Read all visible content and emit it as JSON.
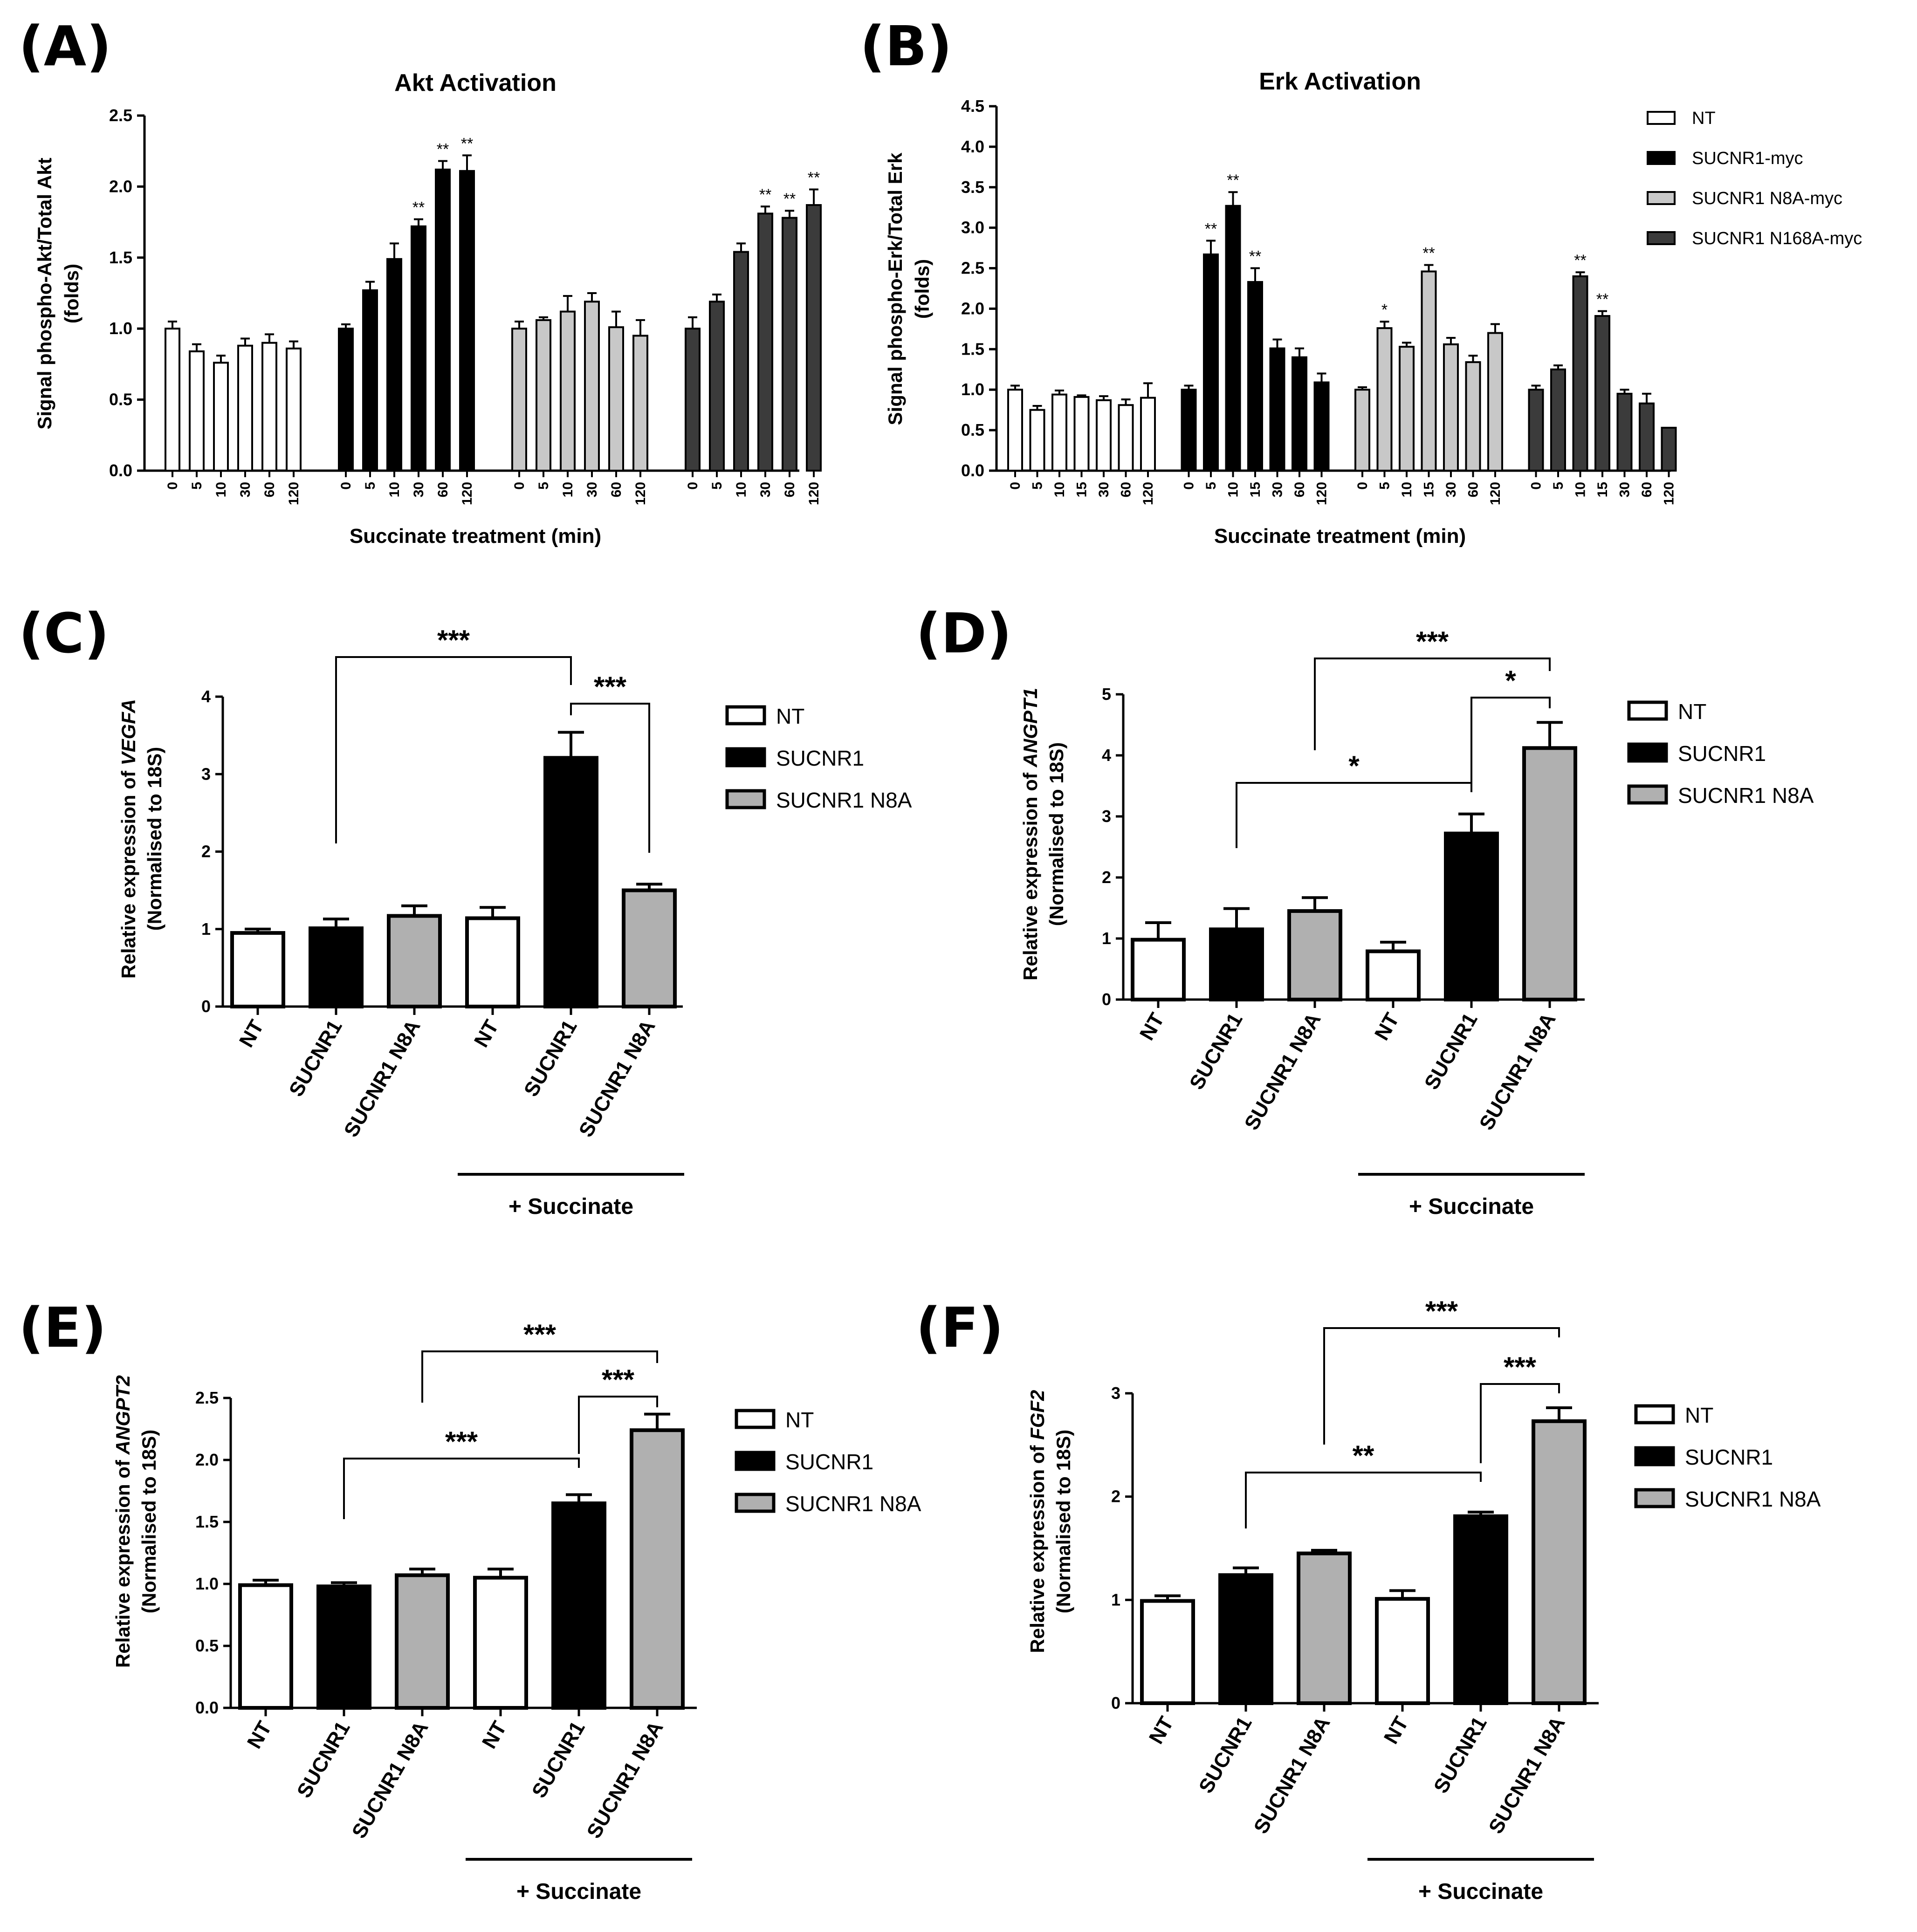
{
  "chart_data": [
    {
      "panel": "(A)",
      "type": "bar",
      "title": "Akt Activation",
      "ylabel": "Signal phospho-Akt/Total Akt\n(folds)",
      "xlabel": "Succinate treatment (min)",
      "ylim": [
        0,
        2.5
      ],
      "yticks": [
        "0.0",
        "0.5",
        "1.0",
        "1.5",
        "2.0",
        "2.5"
      ],
      "groups": [
        {
          "series": "NT",
          "color": "#ffffff",
          "x": [
            "0",
            "5",
            "10",
            "30",
            "60",
            "120"
          ],
          "values": [
            1.0,
            0.84,
            0.76,
            0.88,
            0.9,
            0.86
          ],
          "errors": [
            0.05,
            0.05,
            0.05,
            0.05,
            0.06,
            0.05
          ],
          "sig": [
            "",
            "",
            "",
            "",
            "",
            ""
          ]
        },
        {
          "series": "SUCNR1-myc",
          "color": "#000000",
          "x": [
            "0",
            "5",
            "10",
            "30",
            "60",
            "120"
          ],
          "values": [
            1.0,
            1.27,
            1.49,
            1.72,
            2.12,
            2.11
          ],
          "errors": [
            0.03,
            0.06,
            0.11,
            0.05,
            0.06,
            0.11
          ],
          "sig": [
            "",
            "",
            "",
            "**",
            "**",
            "**"
          ]
        },
        {
          "series": "SUCNR1 N8A-myc",
          "color": "#c8c8c8",
          "x": [
            "0",
            "5",
            "10",
            "30",
            "60",
            "120"
          ],
          "values": [
            1.0,
            1.06,
            1.12,
            1.19,
            1.01,
            0.95
          ],
          "errors": [
            0.05,
            0.02,
            0.11,
            0.06,
            0.11,
            0.11
          ],
          "sig": [
            "",
            "",
            "",
            "",
            "",
            ""
          ]
        },
        {
          "series": "SUCNR1 N168A-myc",
          "color": "#3b3b3b",
          "x": [
            "0",
            "5",
            "10",
            "30",
            "60",
            "120"
          ],
          "values": [
            1.0,
            1.19,
            1.54,
            1.81,
            1.78,
            1.87
          ],
          "errors": [
            0.08,
            0.05,
            0.06,
            0.05,
            0.05,
            0.11
          ],
          "sig": [
            "",
            "",
            "",
            "**",
            "**",
            "**"
          ]
        }
      ]
    },
    {
      "panel": "(B)",
      "type": "bar",
      "title": "Erk Activation",
      "ylabel": "Signal phospho-Erk/Total Erk\n(folds)",
      "xlabel": "Succinate treatment (min)",
      "ylim": [
        0,
        4.5
      ],
      "yticks": [
        "0.0",
        "0.5",
        "1.0",
        "1.5",
        "2.0",
        "2.5",
        "3.0",
        "3.5",
        "4.0",
        "4.5"
      ],
      "legend": [
        "NT",
        "SUCNR1-myc",
        "SUCNR1 N8A-myc",
        "SUCNR1 N168A-myc"
      ],
      "groups": [
        {
          "series": "NT",
          "color": "#ffffff",
          "x": [
            "0",
            "5",
            "10",
            "15",
            "30",
            "60",
            "120"
          ],
          "values": [
            1.0,
            0.75,
            0.94,
            0.91,
            0.87,
            0.81,
            0.9
          ],
          "errors": [
            0.05,
            0.05,
            0.05,
            0.02,
            0.05,
            0.07,
            0.18
          ],
          "sig": [
            "",
            "",
            "",
            "",
            "",
            "",
            ""
          ]
        },
        {
          "series": "SUCNR1-myc",
          "color": "#000000",
          "x": [
            "0",
            "5",
            "10",
            "15",
            "30",
            "60",
            "120"
          ],
          "values": [
            1.0,
            2.67,
            3.27,
            2.33,
            1.51,
            1.4,
            1.09
          ],
          "errors": [
            0.05,
            0.17,
            0.17,
            0.17,
            0.11,
            0.11,
            0.11
          ],
          "sig": [
            "",
            "**",
            "**",
            "**",
            "",
            "",
            ""
          ]
        },
        {
          "series": "SUCNR1 N8A-myc",
          "color": "#c8c8c8",
          "x": [
            "0",
            "5",
            "10",
            "15",
            "30",
            "60",
            "120"
          ],
          "values": [
            1.0,
            1.76,
            1.53,
            2.46,
            1.56,
            1.34,
            1.7
          ],
          "errors": [
            0.03,
            0.08,
            0.05,
            0.08,
            0.08,
            0.08,
            0.11
          ],
          "sig": [
            "",
            "*",
            "",
            "**",
            "",
            "",
            ""
          ]
        },
        {
          "series": "SUCNR1 N168A-myc",
          "color": "#3b3b3b",
          "x": [
            "0",
            "5",
            "10",
            "15",
            "30",
            "60",
            "120"
          ],
          "values": [
            1.0,
            1.25,
            2.4,
            1.91,
            0.95,
            0.83,
            0.53
          ],
          "errors": [
            0.05,
            0.05,
            0.05,
            0.06,
            0.05,
            0.12,
            0
          ],
          "sig": [
            "",
            "",
            "**",
            "**",
            "",
            "",
            ""
          ]
        }
      ]
    },
    {
      "panel": "(C)",
      "type": "bar",
      "ylabel": "Relative expression of VEGFA\n(Normalised to 18S)",
      "ylim": [
        0,
        4
      ],
      "yticks": [
        "0",
        "1",
        "2",
        "3",
        "4"
      ],
      "categories": [
        "NT",
        "SUCNR1",
        "SUCNR1 N8A",
        "NT",
        "SUCNR1",
        "SUCNR1 N8A"
      ],
      "values": [
        0.95,
        1.01,
        1.17,
        1.14,
        3.21,
        1.5
      ],
      "errors": [
        0.05,
        0.12,
        0.13,
        0.14,
        0.33,
        0.08
      ],
      "group_label": "+ Succinate",
      "brackets": [
        "***",
        "***"
      ]
    },
    {
      "panel": "(D)",
      "type": "bar",
      "ylabel": "Relative expression of ANGPT1\n(Normalised to 18S)",
      "ylim": [
        0,
        5
      ],
      "yticks": [
        "0",
        "1",
        "2",
        "3",
        "4",
        "5"
      ],
      "categories": [
        "NT",
        "SUCNR1",
        "SUCNR1 N8A",
        "NT",
        "SUCNR1",
        "SUCNR1 N8A"
      ],
      "values": [
        0.98,
        1.15,
        1.45,
        0.79,
        2.72,
        4.12
      ],
      "errors": [
        0.28,
        0.34,
        0.22,
        0.15,
        0.32,
        0.42
      ],
      "group_label": "+ Succinate",
      "brackets": [
        "***",
        "*",
        "*"
      ]
    },
    {
      "panel": "(E)",
      "type": "bar",
      "ylabel": "Relative expression of ANGPT2\n(Normalised to 18S)",
      "ylim": [
        0,
        2.5
      ],
      "yticks": [
        "0.0",
        "0.5",
        "1.0",
        "1.5",
        "2.0",
        "2.5"
      ],
      "categories": [
        "NT",
        "SUCNR1",
        "SUCNR1 N8A",
        "NT",
        "SUCNR1",
        "SUCNR1 N8A"
      ],
      "values": [
        0.99,
        0.98,
        1.07,
        1.05,
        1.65,
        2.24
      ],
      "errors": [
        0.04,
        0.03,
        0.05,
        0.07,
        0.07,
        0.13
      ],
      "group_label": "+ Succinate",
      "brackets": [
        "***",
        "***",
        "***"
      ]
    },
    {
      "panel": "(F)",
      "type": "bar",
      "ylabel": "Relative expression of FGF2\n(Normalised to 18S)",
      "ylim": [
        0,
        3
      ],
      "yticks": [
        "0",
        "1",
        "2",
        "3"
      ],
      "categories": [
        "NT",
        "SUCNR1",
        "SUCNR1 N8A",
        "NT",
        "SUCNR1",
        "SUCNR1 N8A"
      ],
      "values": [
        0.99,
        1.24,
        1.45,
        1.01,
        1.81,
        2.73
      ],
      "errors": [
        0.05,
        0.07,
        0.03,
        0.08,
        0.04,
        0.13
      ],
      "group_label": "+ Succinate",
      "brackets": [
        "***",
        "***",
        "**"
      ]
    }
  ],
  "legend_cdef": {
    "entries": [
      {
        "label": "NT",
        "color": "#ffffff"
      },
      {
        "label": "SUCNR1",
        "color": "#000000"
      },
      {
        "label": "SUCNR1 N8A",
        "color": "#b0b0b0"
      }
    ]
  }
}
